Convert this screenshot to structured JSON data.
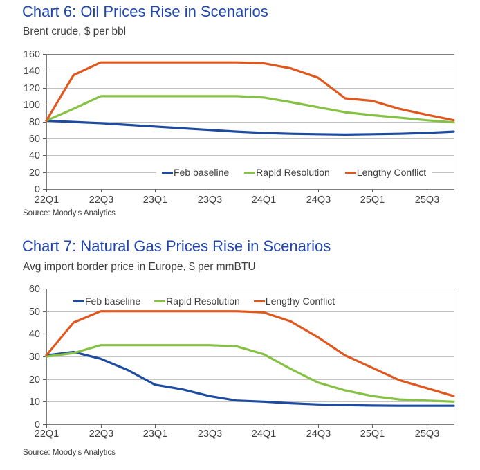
{
  "page": {
    "background": "#ffffff"
  },
  "styles": {
    "title_color": "#1e45b0",
    "text_color": "#3d3d3d",
    "tick_label_color": "#404040",
    "grid_color": "#c2c2c2",
    "border_color": "#7f7f7f",
    "tick_color": "#595959"
  },
  "chart_data": [
    {
      "type": "line",
      "title": "Chart 6: Oil Prices Rise in Scenarios",
      "subtitle": "Brent crude, $ per bbl",
      "source": "Source: Moody's Analytics",
      "categories": [
        "22Q1",
        "22Q2",
        "22Q3",
        "22Q4",
        "23Q1",
        "23Q2",
        "23Q3",
        "23Q4",
        "24Q1",
        "24Q2",
        "24Q3",
        "24Q4",
        "25Q1",
        "25Q2",
        "25Q3",
        "25Q4"
      ],
      "xtick_labels": [
        "22Q1",
        "22Q3",
        "23Q1",
        "23Q3",
        "24Q1",
        "24Q3",
        "25Q1",
        "25Q3"
      ],
      "ylim": [
        0,
        160
      ],
      "yticks": [
        0,
        20,
        40,
        60,
        80,
        100,
        120,
        140,
        160
      ],
      "grid": true,
      "legend_position": "bottom-inside",
      "series": [
        {
          "name": "Feb baseline",
          "color": "#1c4ba0",
          "values": [
            81,
            79.5,
            78,
            76,
            74,
            72,
            70,
            68,
            66.5,
            65.5,
            65,
            64.5,
            65,
            65.5,
            66.5,
            68
          ]
        },
        {
          "name": "Rapid Resolution",
          "color": "#85c143",
          "values": [
            81,
            95,
            110,
            110,
            110,
            110,
            110,
            110,
            108.5,
            103,
            97,
            91,
            87.5,
            84.5,
            81.5,
            79
          ]
        },
        {
          "name": "Lengthy Conflict",
          "color": "#e0571e",
          "values": [
            81,
            135,
            150,
            150,
            150,
            150,
            150,
            150,
            149,
            143,
            132,
            107.5,
            104.5,
            95,
            88,
            81.5
          ]
        }
      ]
    },
    {
      "type": "line",
      "title": "Chart 7: Natural Gas Prices Rise in Scenarios",
      "subtitle": "Avg import border price in Europe, $ per mmBTU",
      "source": "Source: Moody's Analytics",
      "categories": [
        "22Q1",
        "22Q2",
        "22Q3",
        "22Q4",
        "23Q1",
        "23Q2",
        "23Q3",
        "23Q4",
        "24Q1",
        "24Q2",
        "24Q3",
        "24Q4",
        "25Q1",
        "25Q2",
        "25Q3",
        "25Q4"
      ],
      "xtick_labels": [
        "22Q1",
        "22Q3",
        "23Q1",
        "23Q3",
        "24Q1",
        "24Q3",
        "25Q1",
        "25Q3"
      ],
      "ylim": [
        0,
        60
      ],
      "yticks": [
        0,
        10,
        20,
        30,
        40,
        50,
        60
      ],
      "grid": true,
      "legend_position": "top-inside",
      "series": [
        {
          "name": "Feb baseline",
          "color": "#1c4ba0",
          "values": [
            30.5,
            32,
            29,
            24,
            17.5,
            15.5,
            12.5,
            10.5,
            10,
            9.3,
            8.8,
            8.5,
            8.3,
            8.2,
            8.2,
            8.2
          ]
        },
        {
          "name": "Rapid Resolution",
          "color": "#85c143",
          "values": [
            30,
            31.5,
            35,
            35,
            35,
            35,
            35,
            34.5,
            31,
            24.5,
            18.5,
            15,
            12.5,
            11,
            10.5,
            10
          ]
        },
        {
          "name": "Lengthy Conflict",
          "color": "#e0571e",
          "values": [
            30.5,
            45,
            50,
            50,
            50,
            50,
            50,
            50,
            49.5,
            45.5,
            38.5,
            30.5,
            25,
            19.5,
            16,
            12.5
          ]
        }
      ]
    }
  ]
}
